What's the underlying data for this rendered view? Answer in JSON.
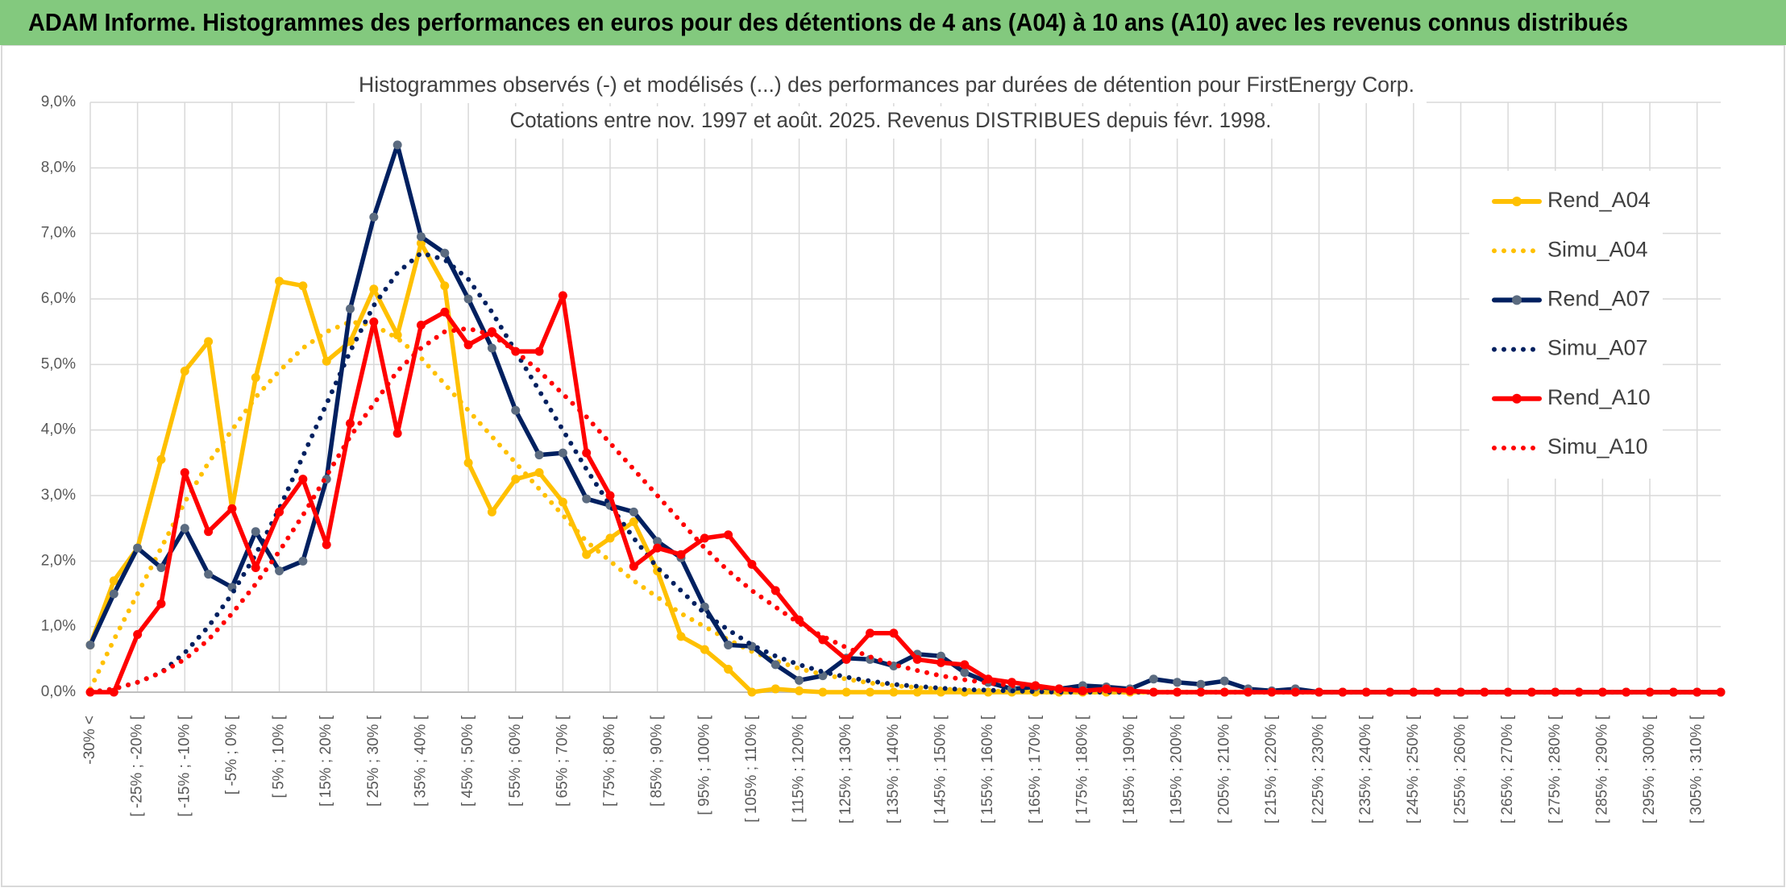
{
  "header": {
    "title": "ADAM Informe. Histogrammes des performances en euros pour des détentions de 4 ans (A04) à 10 ans (A10) avec les revenus connus distribués"
  },
  "chart_data": {
    "type": "line",
    "title": "Histogrammes observés (-) et modélisés (...) des performances par durées de détention pour FirstEnergy Corp.",
    "subtitle": "Cotations entre nov. 1997 et août. 2025. Revenus DISTRIBUES depuis févr. 1998.",
    "categories": [
      "-30% <",
      null,
      "[ -25% ; -20% [",
      null,
      "[ -15% ; -10% [",
      null,
      "[ -5% ; 0% [",
      null,
      "[ 5% ; 10% [",
      null,
      "[ 15% ; 20% [",
      null,
      "[ 25% ; 30% [",
      null,
      "[ 35% ; 40% [",
      null,
      "[ 45% ; 50% [",
      null,
      "[ 55% ; 60% [",
      null,
      "[ 65% ; 70% [",
      null,
      "[ 75% ; 80% [",
      null,
      "[ 85% ; 90% [",
      null,
      "[ 95% ; 100% [",
      null,
      "[ 105% ; 110% [",
      null,
      "[ 115% ; 120% [",
      null,
      "[ 125% ; 130% [",
      null,
      "[ 135% ; 140% [",
      null,
      "[ 145% ; 150% [",
      null,
      "[ 155% ; 160% [",
      null,
      "[ 165% ; 170% [",
      null,
      "[ 175% ; 180% [",
      null,
      "[ 185% ; 190% [",
      null,
      "[ 195% ; 200% [",
      null,
      "[ 205% ; 210% [",
      null,
      "[ 215% ; 220% [",
      null,
      "[ 225% ; 230% [",
      null,
      "[ 235% ; 240% [",
      null,
      "[ 245% ; 250% [",
      null,
      "[ 255% ; 260% [",
      null,
      "[ 265% ; 270% [",
      null,
      "[ 275% ; 280% [",
      null,
      "[ 285% ; 290% [",
      null,
      "[ 295% ; 300% [",
      null,
      "[ 305% ; 310% [",
      null
    ],
    "series": [
      {
        "name": "Rend_A04",
        "color": "#ffc000",
        "line_style": "solid",
        "markers": true,
        "values": [
          0.72,
          1.7,
          2.2,
          3.55,
          4.9,
          5.35,
          2.8,
          4.8,
          6.27,
          6.2,
          5.05,
          5.35,
          6.15,
          5.45,
          6.85,
          6.2,
          3.5,
          2.75,
          3.25,
          3.35,
          2.9,
          2.1,
          2.35,
          2.6,
          1.85,
          0.85,
          0.65,
          0.35,
          0,
          0.05,
          0.02,
          0,
          0,
          0,
          0,
          0,
          0,
          0,
          0,
          0,
          0,
          0,
          0,
          0,
          0,
          0,
          0,
          0,
          0,
          0,
          0,
          0,
          0,
          0,
          0,
          0,
          0,
          0,
          0,
          0,
          0,
          0,
          0,
          0,
          0,
          0,
          0,
          0,
          0,
          0
        ]
      },
      {
        "name": "Simu_A04",
        "color": "#ffc000",
        "line_style": "dotted",
        "markers": false,
        "values": [
          0.05,
          0.8,
          1.5,
          2.2,
          2.9,
          3.5,
          4.0,
          4.5,
          4.9,
          5.25,
          5.5,
          5.65,
          5.6,
          5.4,
          5.1,
          4.7,
          4.3,
          3.9,
          3.5,
          3.1,
          2.7,
          2.3,
          2.0,
          1.7,
          1.45,
          1.2,
          1.0,
          0.8,
          0.62,
          0.48,
          0.36,
          0.27,
          0.2,
          0.14,
          0.1,
          0.07,
          0.05,
          0.03,
          0.02,
          0.01,
          0,
          0,
          0,
          0,
          0,
          0,
          0,
          0,
          0,
          0,
          0,
          0,
          0,
          0,
          0,
          0,
          0,
          0,
          0,
          0,
          0,
          0,
          0,
          0,
          0,
          0,
          0,
          0,
          0,
          0
        ]
      },
      {
        "name": "Rend_A07",
        "color": "#002060",
        "marker_color": "#5b6b80",
        "line_style": "solid",
        "markers": true,
        "values": [
          0.72,
          1.5,
          2.2,
          1.9,
          2.5,
          1.8,
          1.6,
          2.45,
          1.85,
          2.0,
          3.25,
          5.85,
          7.25,
          8.35,
          6.95,
          6.7,
          6.0,
          5.25,
          4.3,
          3.62,
          3.65,
          2.95,
          2.85,
          2.75,
          2.3,
          2.05,
          1.3,
          0.72,
          0.7,
          0.42,
          0.18,
          0.25,
          0.52,
          0.5,
          0.4,
          0.58,
          0.55,
          0.3,
          0.15,
          0.05,
          0.08,
          0.05,
          0.1,
          0.08,
          0.05,
          0.2,
          0.15,
          0.12,
          0.17,
          0.05,
          0.02,
          0.05,
          0,
          0,
          0,
          0,
          0,
          0,
          0,
          0,
          0,
          0,
          0,
          0,
          0,
          0,
          0,
          0,
          0,
          0
        ]
      },
      {
        "name": "Simu_A07",
        "color": "#002060",
        "line_style": "dotted",
        "markers": false,
        "values": [
          0,
          0.05,
          0.15,
          0.3,
          0.6,
          1.0,
          1.5,
          2.1,
          2.8,
          3.6,
          4.4,
          5.2,
          5.9,
          6.4,
          6.7,
          6.6,
          6.3,
          5.8,
          5.2,
          4.6,
          4.0,
          3.4,
          2.85,
          2.35,
          1.9,
          1.55,
          1.2,
          0.95,
          0.72,
          0.55,
          0.42,
          0.31,
          0.23,
          0.17,
          0.12,
          0.09,
          0.06,
          0.04,
          0.03,
          0.02,
          0.01,
          0,
          0,
          0,
          0,
          0,
          0,
          0,
          0,
          0,
          0,
          0,
          0,
          0,
          0,
          0,
          0,
          0,
          0,
          0,
          0,
          0,
          0,
          0,
          0,
          0,
          0,
          0,
          0,
          0
        ]
      },
      {
        "name": "Rend_A10",
        "color": "#ff0000",
        "line_style": "solid",
        "markers": true,
        "values": [
          0,
          0,
          0.88,
          1.35,
          3.35,
          2.45,
          2.8,
          1.9,
          2.75,
          3.25,
          2.25,
          4.1,
          5.65,
          3.95,
          5.6,
          5.8,
          5.3,
          5.5,
          5.2,
          5.2,
          6.05,
          3.65,
          3.0,
          1.92,
          2.2,
          2.1,
          2.35,
          2.4,
          1.95,
          1.55,
          1.1,
          0.8,
          0.5,
          0.9,
          0.9,
          0.5,
          0.45,
          0.42,
          0.2,
          0.15,
          0.1,
          0.05,
          0.02,
          0.05,
          0.02,
          0,
          0,
          0,
          0,
          0,
          0,
          0,
          0,
          0,
          0,
          0,
          0,
          0,
          0,
          0,
          0,
          0,
          0,
          0,
          0,
          0,
          0,
          0,
          0,
          0
        ]
      },
      {
        "name": "Simu_A10",
        "color": "#ff0000",
        "line_style": "dotted",
        "markers": false,
        "values": [
          0,
          0.05,
          0.15,
          0.3,
          0.5,
          0.8,
          1.2,
          1.65,
          2.15,
          2.7,
          3.3,
          3.9,
          4.4,
          4.9,
          5.25,
          5.5,
          5.55,
          5.45,
          5.2,
          4.9,
          4.55,
          4.2,
          3.8,
          3.4,
          3.0,
          2.6,
          2.2,
          1.85,
          1.55,
          1.3,
          1.05,
          0.85,
          0.68,
          0.54,
          0.42,
          0.33,
          0.25,
          0.19,
          0.14,
          0.1,
          0.07,
          0.05,
          0.03,
          0.02,
          0.01,
          0,
          0,
          0,
          0,
          0,
          0,
          0,
          0,
          0,
          0,
          0,
          0,
          0,
          0,
          0,
          0,
          0,
          0,
          0,
          0,
          0,
          0,
          0,
          0,
          0
        ]
      }
    ],
    "ylim": [
      0,
      9
    ],
    "yticks": [
      {
        "value": 0,
        "label": "0,0%"
      },
      {
        "value": 1,
        "label": "1,0%"
      },
      {
        "value": 2,
        "label": "2,0%"
      },
      {
        "value": 3,
        "label": "3,0%"
      },
      {
        "value": 4,
        "label": "4,0%"
      },
      {
        "value": 5,
        "label": "5,0%"
      },
      {
        "value": 6,
        "label": "6,0%"
      },
      {
        "value": 7,
        "label": "7,0%"
      },
      {
        "value": 8,
        "label": "8,0%"
      },
      {
        "value": 9,
        "label": "9,0%"
      }
    ],
    "grid": true,
    "legend": "right"
  }
}
